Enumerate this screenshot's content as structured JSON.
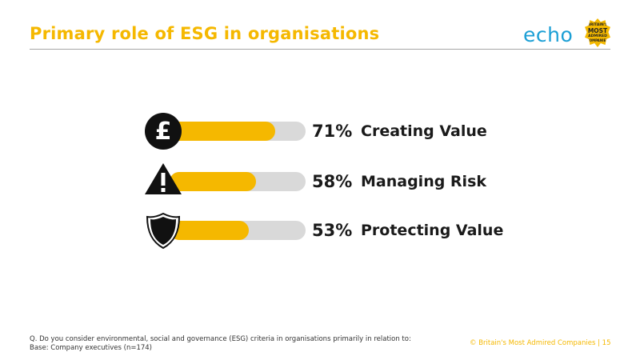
{
  "header": {
    "title": "Primary role of ESG in organisations"
  },
  "logo": {
    "brand": "echo",
    "badge_lines": [
      "BRITAIN'S",
      "MOST",
      "ADMIRED",
      "COMPANIES"
    ]
  },
  "chart_data": {
    "type": "bar",
    "orientation": "horizontal",
    "categories": [
      "Creating Value",
      "Managing Risk",
      "Protecting Value"
    ],
    "values": [
      71,
      58,
      53
    ],
    "value_labels": [
      "71%",
      "58%",
      "53%"
    ],
    "icons": [
      "pound-icon",
      "warning-icon",
      "shield-icon"
    ],
    "xlim": [
      0,
      100
    ],
    "colors": {
      "fill": "#f5b800",
      "track": "#d9d9d9"
    }
  },
  "footer": {
    "question": "Q. Do you consider environmental, social and governance (ESG) criteria in organisations primarily in relation to:",
    "base": "Base: Company executives (n=174)",
    "copyright": "© Britain's Most Admired Companies  |  15"
  }
}
